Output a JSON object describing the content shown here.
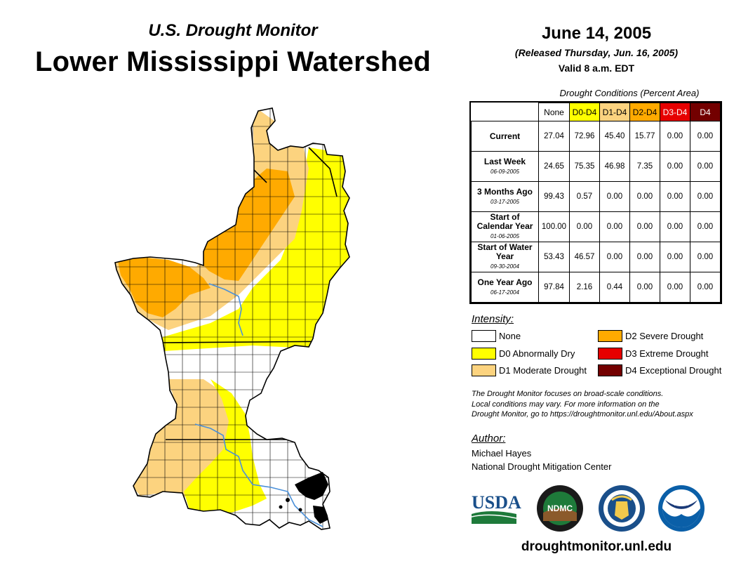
{
  "header": {
    "subtitle": "U.S. Drought Monitor",
    "title": "Lower Mississippi Watershed",
    "date": "June 14, 2005",
    "released": "(Released Thursday, Jun. 16, 2005)",
    "valid": "Valid 8 a.m. EDT"
  },
  "table": {
    "caption": "Drought Conditions (Percent Area)",
    "columns": [
      "None",
      "D0-D4",
      "D1-D4",
      "D2-D4",
      "D3-D4",
      "D4"
    ],
    "rows": [
      {
        "label": "Current",
        "date": "",
        "values": [
          "27.04",
          "72.96",
          "45.40",
          "15.77",
          "0.00",
          "0.00"
        ]
      },
      {
        "label": "Last Week",
        "date": "06-09-2005",
        "values": [
          "24.65",
          "75.35",
          "46.98",
          "7.35",
          "0.00",
          "0.00"
        ]
      },
      {
        "label": "3 Months Ago",
        "date": "03-17-2005",
        "values": [
          "99.43",
          "0.57",
          "0.00",
          "0.00",
          "0.00",
          "0.00"
        ]
      },
      {
        "label": "Start of Calendar Year",
        "date": "01-06-2005",
        "values": [
          "100.00",
          "0.00",
          "0.00",
          "0.00",
          "0.00",
          "0.00"
        ]
      },
      {
        "label": "Start of Water Year",
        "date": "09-30-2004",
        "values": [
          "53.43",
          "46.57",
          "0.00",
          "0.00",
          "0.00",
          "0.00"
        ]
      },
      {
        "label": "One Year Ago",
        "date": "06-17-2004",
        "values": [
          "97.84",
          "2.16",
          "0.44",
          "0.00",
          "0.00",
          "0.00"
        ]
      }
    ]
  },
  "legend": {
    "title": "Intensity:",
    "items": [
      {
        "label": "None",
        "color": "#ffffff"
      },
      {
        "label": "D0 Abnormally Dry",
        "color": "#ffff00"
      },
      {
        "label": "D1 Moderate Drought",
        "color": "#fcd37f"
      },
      {
        "label": "D2 Severe Drought",
        "color": "#ffaa00"
      },
      {
        "label": "D3 Extreme Drought",
        "color": "#e60000"
      },
      {
        "label": "D4 Exceptional Drought",
        "color": "#730000"
      }
    ]
  },
  "note": {
    "line1": "The Drought Monitor focuses on broad-scale conditions.",
    "line2": "Local conditions may vary. For more information on the",
    "line3": "Drought Monitor, go to https://droughtmonitor.unl.edu/About.aspx"
  },
  "author": {
    "title": "Author:",
    "name": "Michael Hayes",
    "org": "National Drought Mitigation Center"
  },
  "logos": {
    "usda": "USDA",
    "ndmc": "NDMC",
    "noaa": "NOAA"
  },
  "footer": {
    "url": "droughtmonitor.unl.edu"
  },
  "map_colors": {
    "none": "#ffffff",
    "d0": "#ffff00",
    "d1": "#fcd37f",
    "d2": "#ffaa00",
    "border": "#000000",
    "river": "#4a90d9"
  }
}
